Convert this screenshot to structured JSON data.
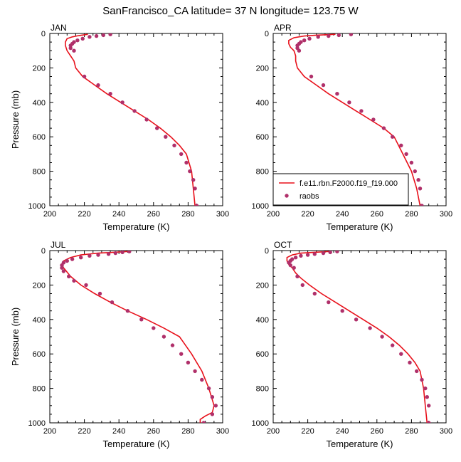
{
  "title": "SanFrancisco_CA  latitude= 37 N longitude= 123.75 W",
  "colors": {
    "model": "#e8101a",
    "obs": "#b0306a"
  },
  "legend": {
    "model_label": "f.e11.rbn.F2000.f19_f19.000",
    "obs_label": "raobs"
  },
  "chart_data": [
    {
      "type": "line",
      "panel_title": "JAN",
      "xlabel": "Temperature (K)",
      "ylabel": "Pressure (mb)",
      "xlim": [
        200,
        300
      ],
      "ylim": [
        1000,
        0
      ],
      "xticks": [
        "200",
        "220",
        "240",
        "260",
        "280",
        "300"
      ],
      "yticks": [
        "0",
        "200",
        "400",
        "600",
        "800",
        "1000"
      ],
      "series": [
        {
          "name": "f.e11.rbn.F2000.f19_f19.000",
          "kind": "line",
          "x": [
            222,
            217,
            213,
            210,
            209,
            209,
            210,
            212,
            214,
            215,
            219,
            226,
            233,
            241,
            249,
            257,
            264,
            270,
            275,
            279,
            282,
            283,
            284
          ],
          "y": [
            5,
            12,
            20,
            30,
            50,
            70,
            100,
            130,
            160,
            200,
            250,
            300,
            350,
            400,
            450,
            500,
            550,
            600,
            650,
            700,
            800,
            900,
            1000
          ]
        },
        {
          "name": "raobs",
          "kind": "scatter",
          "x": [
            235,
            231,
            227,
            223,
            219,
            216,
            214,
            213,
            212,
            212,
            214,
            220,
            228,
            235,
            242,
            249,
            256,
            262,
            267,
            272,
            276,
            279,
            281,
            283,
            284,
            285
          ],
          "y": [
            5,
            10,
            15,
            20,
            30,
            40,
            50,
            60,
            70,
            85,
            100,
            250,
            300,
            350,
            400,
            450,
            500,
            550,
            600,
            650,
            700,
            750,
            800,
            850,
            900,
            1000
          ]
        }
      ]
    },
    {
      "type": "line",
      "panel_title": "APR",
      "xlabel": "",
      "ylabel": "",
      "xlim": [
        200,
        300
      ],
      "ylim": [
        1000,
        0
      ],
      "xticks": [
        "200",
        "220",
        "240",
        "260",
        "280",
        "300"
      ],
      "yticks": [
        "0",
        "200",
        "400",
        "600",
        "800",
        "1000"
      ],
      "series": [
        {
          "name": "f.e11.rbn.F2000.f19_f19.000",
          "kind": "line",
          "x": [
            236,
            225,
            218,
            212,
            209,
            209,
            210,
            212,
            213,
            213,
            214,
            218,
            225,
            232,
            240,
            248,
            256,
            264,
            270,
            275,
            280,
            283,
            285
          ],
          "y": [
            5,
            10,
            15,
            25,
            40,
            60,
            80,
            100,
            130,
            160,
            200,
            250,
            300,
            350,
            400,
            450,
            500,
            550,
            600,
            700,
            800,
            900,
            1000
          ]
        },
        {
          "name": "raobs",
          "kind": "scatter",
          "x": [
            245,
            238,
            232,
            226,
            221,
            218,
            216,
            215,
            214,
            214,
            215,
            222,
            229,
            237,
            244,
            251,
            258,
            264,
            269,
            274,
            277,
            280,
            282,
            284,
            285,
            286
          ],
          "y": [
            5,
            10,
            15,
            20,
            30,
            40,
            50,
            60,
            70,
            85,
            100,
            250,
            300,
            350,
            400,
            450,
            500,
            550,
            600,
            650,
            700,
            750,
            800,
            850,
            900,
            1000
          ]
        }
      ]
    },
    {
      "type": "line",
      "panel_title": "JUL",
      "xlabel": "Temperature (K)",
      "ylabel": "Pressure (mb)",
      "xlim": [
        200,
        300
      ],
      "ylim": [
        1000,
        0
      ],
      "xticks": [
        "200",
        "220",
        "240",
        "260",
        "280",
        "300"
      ],
      "yticks": [
        "0",
        "200",
        "400",
        "600",
        "800",
        "1000"
      ],
      "series": [
        {
          "name": "f.e11.rbn.F2000.f19_f19.000",
          "kind": "line",
          "x": [
            246,
            237,
            228,
            218,
            212,
            208,
            207,
            208,
            212,
            218,
            226,
            235,
            245,
            256,
            266,
            275,
            282,
            288,
            292,
            295,
            294,
            290,
            287,
            287
          ],
          "y": [
            5,
            10,
            15,
            25,
            40,
            60,
            80,
            100,
            150,
            200,
            250,
            300,
            350,
            400,
            450,
            500,
            600,
            700,
            800,
            900,
            940,
            960,
            980,
            1000
          ]
        },
        {
          "name": "raobs",
          "kind": "scatter",
          "x": [
            246,
            242,
            238,
            234,
            228,
            223,
            218,
            213,
            210,
            208,
            207,
            207,
            208,
            211,
            214,
            221,
            229,
            236,
            245,
            253,
            260,
            266,
            271,
            276,
            280,
            284,
            288,
            292,
            294,
            296,
            294,
            289
          ],
          "y": [
            5,
            10,
            15,
            20,
            25,
            30,
            40,
            50,
            60,
            70,
            85,
            100,
            120,
            150,
            175,
            200,
            250,
            300,
            350,
            400,
            450,
            500,
            550,
            600,
            650,
            700,
            750,
            800,
            850,
            900,
            950,
            1000
          ]
        }
      ]
    },
    {
      "type": "line",
      "panel_title": "OCT",
      "xlabel": "Temperature (K)",
      "ylabel": "",
      "xlim": [
        200,
        300
      ],
      "ylim": [
        1000,
        0
      ],
      "xticks": [
        "200",
        "220",
        "240",
        "260",
        "280",
        "300"
      ],
      "yticks": [
        "0",
        "200",
        "400",
        "600",
        "800",
        "1000"
      ],
      "series": [
        {
          "name": "f.e11.rbn.F2000.f19_f19.000",
          "kind": "line",
          "x": [
            233,
            224,
            216,
            211,
            208,
            208,
            209,
            211,
            213,
            216,
            221,
            228,
            236,
            244,
            252,
            260,
            267,
            273,
            278,
            282,
            285,
            287,
            288,
            289
          ],
          "y": [
            5,
            10,
            15,
            25,
            40,
            60,
            80,
            100,
            130,
            160,
            200,
            250,
            300,
            350,
            400,
            450,
            500,
            550,
            600,
            650,
            700,
            800,
            900,
            1000
          ]
        },
        {
          "name": "raobs",
          "kind": "scatter",
          "x": [
            237,
            233,
            229,
            224,
            220,
            216,
            213,
            211,
            210,
            209,
            210,
            212,
            214,
            217,
            224,
            232,
            240,
            248,
            256,
            263,
            269,
            274,
            279,
            283,
            286,
            288,
            289,
            290,
            290
          ],
          "y": [
            5,
            10,
            15,
            20,
            25,
            30,
            40,
            50,
            60,
            70,
            85,
            100,
            150,
            200,
            250,
            300,
            350,
            400,
            450,
            500,
            550,
            600,
            650,
            700,
            750,
            800,
            850,
            900,
            1000
          ]
        }
      ]
    }
  ]
}
